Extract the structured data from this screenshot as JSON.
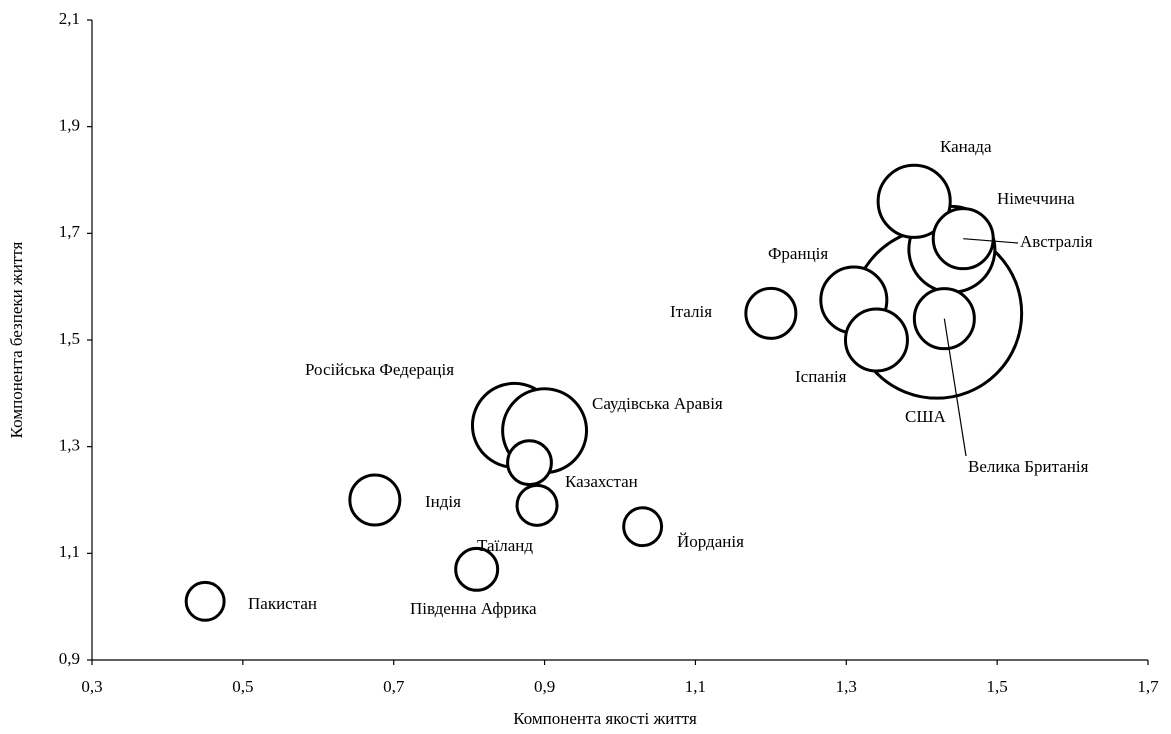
{
  "chart_data": {
    "type": "bubble",
    "x_label": "Компонента якості життя",
    "y_label": "Компонента безпеки життя",
    "xlim": [
      0.3,
      1.7
    ],
    "xticks": [
      {
        "value": 0.3,
        "label": "0,3"
      },
      {
        "value": 0.5,
        "label": "0,5"
      },
      {
        "value": 0.7,
        "label": "0,7"
      },
      {
        "value": 0.9,
        "label": "0,9"
      },
      {
        "value": 1.1,
        "label": "1,1"
      },
      {
        "value": 1.3,
        "label": "1,3"
      },
      {
        "value": 1.5,
        "label": "1,5"
      },
      {
        "value": 1.7,
        "label": "1,7"
      }
    ],
    "ylim": [
      0.9,
      2.1
    ],
    "yticks": [
      {
        "value": 0.9,
        "label": "0,9"
      },
      {
        "value": 1.1,
        "label": "1,1"
      },
      {
        "value": 1.3,
        "label": "1,3"
      },
      {
        "value": 1.5,
        "label": "1,5"
      },
      {
        "value": 1.7,
        "label": "1,7"
      },
      {
        "value": 1.9,
        "label": "1,9"
      },
      {
        "value": 2.1,
        "label": "2,1"
      }
    ],
    "color": "#ffffff",
    "points": [
      {
        "label": "Канада",
        "x": 1.39,
        "y": 1.76,
        "size": 13
      },
      {
        "label": "Німеччина",
        "x": 1.44,
        "y": 1.67,
        "size": 18.5
      },
      {
        "label": "Австралія",
        "x": 1.455,
        "y": 1.69,
        "size": 9
      },
      {
        "label": "Франція",
        "x": 1.31,
        "y": 1.575,
        "size": 10.9
      },
      {
        "label": "Італія",
        "x": 1.2,
        "y": 1.55,
        "size": 6.25
      },
      {
        "label": "Іспанія",
        "x": 1.34,
        "y": 1.5,
        "size": 9.6
      },
      {
        "label": "США",
        "x": 1.42,
        "y": 1.55,
        "size": 72
      },
      {
        "label": "Велика Британія",
        "x": 1.43,
        "y": 1.54,
        "size": 9
      },
      {
        "label": "Російська Федерація",
        "x": 0.86,
        "y": 1.34,
        "size": 17.6
      },
      {
        "label": "Саудівська Аравія",
        "x": 0.9,
        "y": 1.33,
        "size": 17.6
      },
      {
        "label": "Казахстан",
        "x": 0.88,
        "y": 1.27,
        "size": 4.8
      },
      {
        "label": "Індія",
        "x": 0.675,
        "y": 1.2,
        "size": 6.25
      },
      {
        "label": "Таїланд",
        "x": 0.89,
        "y": 1.19,
        "size": 4
      },
      {
        "label": "Йорданія",
        "x": 1.03,
        "y": 1.15,
        "size": 3.6
      },
      {
        "label": "Пакистан",
        "x": 0.45,
        "y": 1.01,
        "size": 3.6
      },
      {
        "label": "Південна Африка",
        "x": 0.81,
        "y": 1.07,
        "size": 4.4
      }
    ]
  }
}
